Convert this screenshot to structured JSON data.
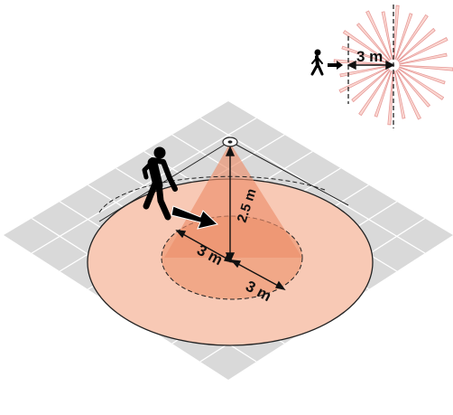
{
  "diagram": {
    "inset_distance_label": "3 m",
    "height_label": "2.5 m",
    "inner_radius_label": "3 m",
    "outer_segment_label": "3 m"
  },
  "colors": {
    "floor_fill": "#d9d9d9",
    "floor_grid": "#ffffff",
    "outer_zone": "#f8c9b5",
    "inner_zone": "#f1a888",
    "cone": "#ec8f6c",
    "ray_fill": "#fbd9d3",
    "ray_stroke": "#e79a98",
    "figure": "#000000"
  },
  "icons": {
    "sensor": "sensor-icon",
    "walker_large": "walking-person-icon",
    "walker_small": "walking-person-icon",
    "direction_arrow": "direction-arrow-icon"
  }
}
